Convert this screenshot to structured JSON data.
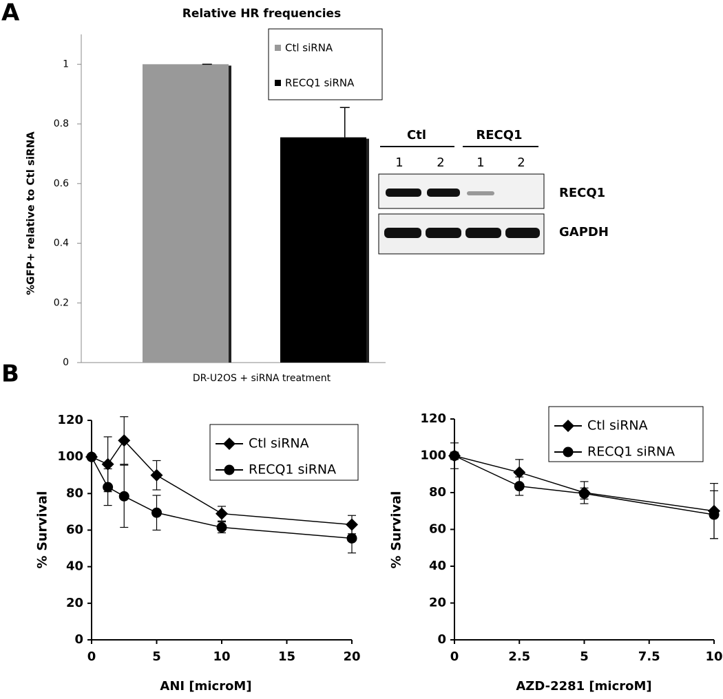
{
  "panels": [
    "A",
    "B"
  ],
  "blot": {
    "groups": [
      "Ctl",
      "RECQ1"
    ],
    "lanes": [
      "1",
      "2",
      "1",
      "2"
    ],
    "rows": [
      "RECQ1",
      "GAPDH"
    ]
  },
  "chart_data": [
    {
      "type": "bar",
      "title": "Relative HR frequencies",
      "y_label": "%GFP+ relative to Ctl siRNA",
      "x_label": "DR-U2OS + siRNA treatment",
      "ylim": [
        0,
        1.1
      ],
      "yticks": [
        0,
        0.2,
        0.4,
        0.6,
        0.8,
        1
      ],
      "series": [
        {
          "name": "Ctl siRNA",
          "color": "#999999",
          "values": [
            1
          ],
          "errors": [
            0
          ]
        },
        {
          "name": "RECQ1 siRNA",
          "color": "#000000",
          "values": [
            0.755
          ],
          "errors": [
            0.1
          ]
        }
      ]
    },
    {
      "type": "line",
      "x_label": "ANI [microM]",
      "y_label": "% Survival",
      "x": [
        0,
        1.25,
        2.5,
        5,
        10,
        20
      ],
      "xlim": [
        0,
        20
      ],
      "xticks": [
        0,
        5,
        10,
        15,
        20
      ],
      "ylim": [
        0,
        120
      ],
      "yticks": [
        0,
        20,
        40,
        60,
        80,
        100,
        120
      ],
      "series": [
        {
          "name": "Ctl siRNA",
          "color": "#000000",
          "marker": "diamond",
          "values": [
            100,
            96,
            109,
            90,
            69,
            63
          ],
          "errors": [
            0,
            15,
            13,
            8,
            4,
            5
          ]
        },
        {
          "name": "RECQ1 siRNA",
          "color": "#000000",
          "marker": "circle",
          "values": [
            100,
            83.5,
            78.5,
            69.5,
            61.5,
            55.5
          ],
          "errors": [
            0,
            10,
            17,
            9.5,
            3,
            8
          ]
        }
      ]
    },
    {
      "type": "line",
      "x_label": "AZD-2281 [microM]",
      "y_label": "% Survival",
      "x": [
        0,
        2.5,
        5,
        10
      ],
      "xlim": [
        0,
        10
      ],
      "xticks": [
        0,
        2.5,
        5,
        7.5,
        10
      ],
      "ylim": [
        0,
        120
      ],
      "yticks": [
        0,
        20,
        40,
        60,
        80,
        100,
        120
      ],
      "series": [
        {
          "name": "Ctl siRNA",
          "color": "#000000",
          "marker": "diamond",
          "values": [
            100,
            91,
            80,
            70
          ],
          "errors": [
            7,
            7,
            6,
            15
          ]
        },
        {
          "name": "RECQ1 siRNA",
          "color": "#000000",
          "marker": "circle",
          "values": [
            100,
            83.5,
            79.5,
            68
          ],
          "errors": [
            2,
            5,
            3,
            13
          ]
        }
      ]
    }
  ]
}
